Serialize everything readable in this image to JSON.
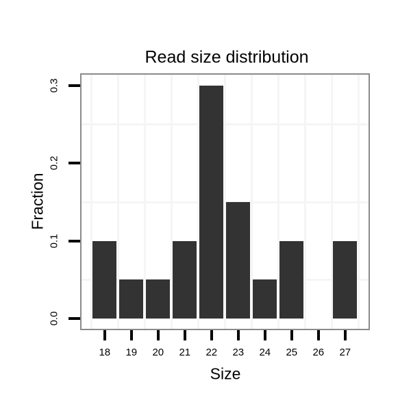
{
  "figure": {
    "title": "Read size distribution",
    "background_color": "#ffffff"
  },
  "chart_data": {
    "type": "bar",
    "title": "Read size distribution",
    "xlabel": "Size",
    "ylabel": "Fraction",
    "categories": [
      "18",
      "19",
      "20",
      "21",
      "22",
      "23",
      "24",
      "25",
      "26",
      "27"
    ],
    "values": [
      0.1,
      0.05,
      0.05,
      0.1,
      0.3,
      0.15,
      0.05,
      0.1,
      0,
      0.1
    ],
    "ylim": [
      -0.015,
      0.316
    ],
    "yticks": [
      0.0,
      0.1,
      0.2,
      0.3
    ],
    "ytick_labels": [
      "0.0",
      "0.1",
      "0.2",
      "0.3"
    ],
    "ytick_labels_rotated": true,
    "minor_gridlines_y": [
      0.05,
      0.15,
      0.25
    ],
    "vertical_gridlines_between_categories": true,
    "legend_position": "none",
    "colors": {
      "bar_fill": "#333333",
      "panel_border": "#8a8a8a",
      "gridline": "#f5f5f5",
      "tick": "#000000",
      "text": "#000000",
      "panel_background": "#ffffff"
    }
  }
}
